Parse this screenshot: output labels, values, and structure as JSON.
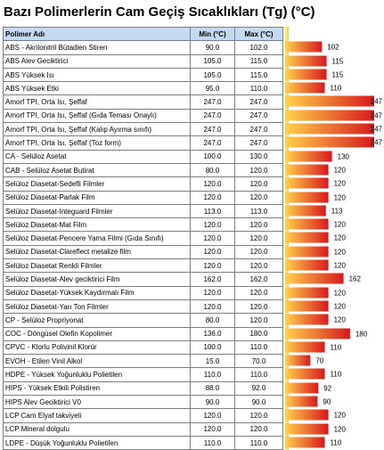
{
  "title": "Bazı Polimerlerin Cam Geçiş Sıcaklıkları (Tg) (°C)",
  "header": {
    "name": "Polimer Adı",
    "min": "Min (°C)",
    "max": "Max (°C)"
  },
  "rows": [
    {
      "name": "ABS - Akrilonitril Bütadien Stiren",
      "min": "90.0",
      "max": "102.0"
    },
    {
      "name": "ABS Alev Geciktirici",
      "min": "105.0",
      "max": "115.0"
    },
    {
      "name": "ABS Yüksek Isı",
      "min": "105.0",
      "max": "115.0"
    },
    {
      "name": "ABS Yüksek Etki",
      "min": "95.0",
      "max": "110.0"
    },
    {
      "name": "Amorf TPI, Orta Isı, Şeffaf",
      "min": "247.0",
      "max": "247.0"
    },
    {
      "name": "Amorf TPI, Orta Isı, Şeffaf (Gıda Teması Onaylı)",
      "min": "247.0",
      "max": "247.0"
    },
    {
      "name": "Amorf TPI, Orta Isı, Şeffaf (Kalıp Ayırma sınıfı)",
      "min": "247.0",
      "max": "247.0"
    },
    {
      "name": "Amorf TPI, Orta Isı, Şeffaf (Toz form)",
      "min": "247.0",
      "max": "247.0"
    },
    {
      "name": "CA - Selüloz Asetat",
      "min": "100.0",
      "max": "130.0"
    },
    {
      "name": "CAB - Selüloz Asetat Butirat",
      "min": "80.0",
      "max": "120.0"
    },
    {
      "name": "Selüloz Diasetat-Sedefli Filmler",
      "min": "120.0",
      "max": "120.0"
    },
    {
      "name": "Selüloz Diasetat-Parlak Film",
      "min": "120.0",
      "max": "120.0"
    },
    {
      "name": "Selüloz Diasetat-Integuard Filmler",
      "min": "113.0",
      "max": "113.0"
    },
    {
      "name": "Selüloz Diasetat-Mat Film",
      "min": "120.0",
      "max": "120.0"
    },
    {
      "name": "Selüloz Diasetat-Pencere Yama Filmi (Gıda Sınıfı)",
      "min": "120.0",
      "max": "120.0"
    },
    {
      "name": "Selüloz Diasetat-Clareflect metalize film",
      "min": "120.0",
      "max": "120.0"
    },
    {
      "name": "Selüloz Diasetat Renkli Filmler",
      "min": "120.0",
      "max": "120.0"
    },
    {
      "name": "Selüloz Diasetat-Alev geciktirici Film",
      "min": "162.0",
      "max": "162.0"
    },
    {
      "name": "Selüloz Diasetat-Yüksek Kaydırmalı Film",
      "min": "120.0",
      "max": "120.0"
    },
    {
      "name": "Selüloz Diasetat-Yarı Ton Filmler",
      "min": "120.0",
      "max": "120.0"
    },
    {
      "name": "CP - Selüloz Propriyonat",
      "min": "80.0",
      "max": "120.0"
    },
    {
      "name": "COC - Döngüsel Olefin Kopolimer",
      "min": "136.0",
      "max": "180.0"
    },
    {
      "name": "CPVC - Klorlu Polivinil Klorür",
      "min": "100.0",
      "max": "110.0"
    },
    {
      "name": "EVOH - Etilen Vinil Alkol",
      "min": "15.0",
      "max": "70.0"
    },
    {
      "name": "HDPE - Yüksek Yoğunluklu Polietilen",
      "min": "110.0",
      "max": "110.0"
    },
    {
      "name": "HIPS - Yüksek Etkili Polistiren",
      "min": "88.0",
      "max": "92.0"
    },
    {
      "name": "HIPS Alev Geciktirici V0",
      "min": "90.0",
      "max": "90.0"
    },
    {
      "name": "LCP Cam Elyaf takviyeli",
      "min": "120.0",
      "max": "120.0"
    },
    {
      "name": "LCP Mineral dolgulu",
      "min": "120.0",
      "max": "120.0"
    },
    {
      "name": "LDPE - Düşük Yoğunluklu Polietilen",
      "min": "110.0",
      "max": "110.0"
    }
  ],
  "chart_data": {
    "type": "bar",
    "orientation": "horizontal",
    "categories": [
      "ABS - Akrilonitril Bütadien Stiren",
      "ABS Alev Geciktirici",
      "ABS Yüksek Isı",
      "ABS Yüksek Etki",
      "Amorf TPI, Orta Isı, Şeffaf",
      "Amorf TPI, Orta Isı, Şeffaf (Gıda Teması Onaylı)",
      "Amorf TPI, Orta Isı, Şeffaf (Kalıp Ayırma sınıfı)",
      "Amorf TPI, Orta Isı, Şeffaf (Toz form)",
      "CA - Selüloz Asetat",
      "CAB - Selüloz Asetat Butirat",
      "Selüloz Diasetat-Sedefli Filmler",
      "Selüloz Diasetat-Parlak Film",
      "Selüloz Diasetat-Integuard Filmler",
      "Selüloz Diasetat-Mat Film",
      "Selüloz Diasetat-Pencere Yama Filmi (Gıda Sınıfı)",
      "Selüloz Diasetat-Clareflect metalize film",
      "Selüloz Diasetat Renkli Filmler",
      "Selüloz Diasetat-Alev geciktirici Film",
      "Selüloz Diasetat-Yüksek Kaydırmalı Film",
      "Selüloz Diasetat-Yarı Ton Filmler",
      "CP - Selüloz Propriyonat",
      "COC - Döngüsel Olefin Kopolimer",
      "CPVC - Klorlu Polivinil Klorür",
      "EVOH - Etilen Vinil Alkol",
      "HDPE - Yüksek Yoğunluklu Polietilen",
      "HIPS - Yüksek Etkili Polistiren",
      "HIPS Alev Geciktirici V0",
      "LCP Cam Elyaf takviyeli",
      "LCP Mineral dolgulu",
      "LDPE - Düşük Yoğunluklu Polietilen"
    ],
    "values": [
      102,
      115,
      115,
      110,
      247,
      247,
      247,
      247,
      130,
      120,
      120,
      120,
      113,
      120,
      120,
      120,
      120,
      162,
      120,
      120,
      120,
      180,
      110,
      70,
      110,
      92,
      90,
      120,
      120,
      110
    ],
    "labels": [
      "102",
      "115",
      "115",
      "110",
      "247",
      "247",
      "247",
      "247",
      "130",
      "120",
      "120",
      "120",
      "113",
      "120",
      "120",
      "120",
      "120",
      "162",
      "120",
      "120",
      "120",
      "180",
      "110",
      "70",
      "110",
      "92",
      "90",
      "120",
      "120",
      "110"
    ],
    "xlim": [
      0,
      247
    ],
    "title": "",
    "xlabel": "",
    "ylabel": "",
    "grid": false,
    "colors": {
      "bar_start": "#ffd24a",
      "bar_end": "#d7191c",
      "axis_bg_start": "#fff4a8",
      "axis_bg_end": "#ffd000"
    }
  }
}
